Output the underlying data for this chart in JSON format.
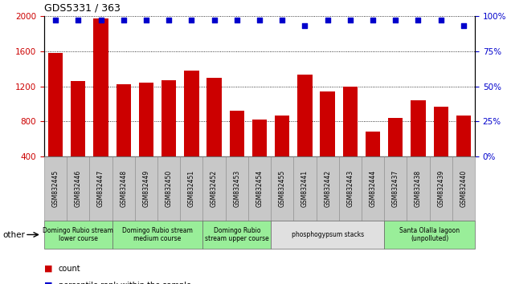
{
  "title": "GDS5331 / 363",
  "samples": [
    "GSM832445",
    "GSM832446",
    "GSM832447",
    "GSM832448",
    "GSM832449",
    "GSM832450",
    "GSM832451",
    "GSM832452",
    "GSM832453",
    "GSM832454",
    "GSM832455",
    "GSM832441",
    "GSM832442",
    "GSM832443",
    "GSM832444",
    "GSM832437",
    "GSM832438",
    "GSM832439",
    "GSM832440"
  ],
  "counts": [
    1580,
    1260,
    1970,
    1225,
    1240,
    1270,
    1380,
    1300,
    920,
    820,
    870,
    1330,
    1140,
    1200,
    680,
    840,
    1040,
    970,
    870
  ],
  "percentiles": [
    97,
    97,
    97,
    97,
    97,
    97,
    97,
    97,
    97,
    97,
    97,
    93,
    97,
    97,
    97,
    97,
    97,
    97,
    93
  ],
  "ylim_left": [
    400,
    2000
  ],
  "ylim_right": [
    0,
    100
  ],
  "yticks_left": [
    400,
    800,
    1200,
    1600,
    2000
  ],
  "yticks_right": [
    0,
    25,
    50,
    75,
    100
  ],
  "bar_color": "#cc0000",
  "dot_color": "#0000cc",
  "groups": [
    {
      "label": "Domingo Rubio stream\nlower course",
      "start": 0,
      "end": 3,
      "color": "#99ee99"
    },
    {
      "label": "Domingo Rubio stream\nmedium course",
      "start": 3,
      "end": 7,
      "color": "#99ee99"
    },
    {
      "label": "Domingo Rubio\nstream upper course",
      "start": 7,
      "end": 10,
      "color": "#99ee99"
    },
    {
      "label": "phosphogypsum stacks",
      "start": 10,
      "end": 15,
      "color": "#e0e0e0"
    },
    {
      "label": "Santa Olalla lagoon\n(unpolluted)",
      "start": 15,
      "end": 19,
      "color": "#99ee99"
    }
  ],
  "tick_bg_color": "#c8c8c8",
  "tick_border_color": "#888888",
  "group_border_color": "#666666",
  "legend_count_color": "#cc0000",
  "legend_pct_color": "#0000cc",
  "right_ytick_labels": [
    "0%",
    "25%",
    "50%",
    "75%",
    "100%"
  ]
}
